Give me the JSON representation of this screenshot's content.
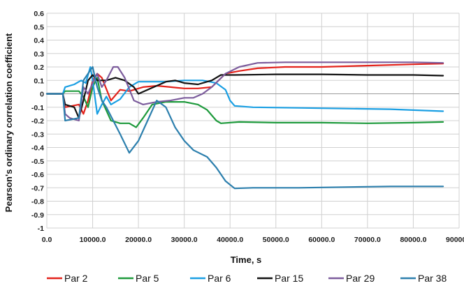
{
  "chart_data": {
    "type": "line",
    "xlabel": "Time, s",
    "ylabel": "Pearson's ordinary correlation coefficient",
    "xlim": [
      0,
      90000
    ],
    "ylim": [
      -1,
      0.6
    ],
    "grid": true,
    "legend_position": "bottom",
    "x_ticks": [
      "0.0",
      "10000.0",
      "20000.0",
      "30000.0",
      "40000.0",
      "50000.0",
      "60000.0",
      "70000.0",
      "80000.0",
      "90000.0"
    ],
    "y_ticks": [
      "0.6",
      "0.5",
      "0.4",
      "0.3",
      "0.2",
      "0.1",
      "0",
      "-0.1",
      "-0.2",
      "-0.3",
      "-0.4",
      "-0.5",
      "-0.6",
      "-0.7",
      "-0.8",
      "-0.9",
      "-1"
    ],
    "series": [
      {
        "name": "Par 2",
        "color": "#e3221b",
        "points": [
          [
            0,
            0
          ],
          [
            3500,
            0
          ],
          [
            4000,
            -0.1
          ],
          [
            7000,
            -0.08
          ],
          [
            8000,
            -0.15
          ],
          [
            9000,
            -0.05
          ],
          [
            10000,
            0.1
          ],
          [
            11000,
            0.15
          ],
          [
            12000,
            0.12
          ],
          [
            14000,
            -0.05
          ],
          [
            16000,
            0.03
          ],
          [
            18000,
            0.02
          ],
          [
            21000,
            0.05
          ],
          [
            24000,
            0.06
          ],
          [
            27000,
            0.05
          ],
          [
            30000,
            0.04
          ],
          [
            33000,
            0.04
          ],
          [
            36000,
            0.05
          ],
          [
            39000,
            0.15
          ],
          [
            42000,
            0.17
          ],
          [
            46000,
            0.19
          ],
          [
            52000,
            0.2
          ],
          [
            60000,
            0.2
          ],
          [
            70000,
            0.21
          ],
          [
            80000,
            0.22
          ],
          [
            86500,
            0.225
          ]
        ]
      },
      {
        "name": "Par 5",
        "color": "#1e9a3c",
        "points": [
          [
            0,
            0
          ],
          [
            3500,
            0
          ],
          [
            4000,
            0.02
          ],
          [
            7000,
            0.02
          ],
          [
            8000,
            -0.02
          ],
          [
            9000,
            -0.1
          ],
          [
            10000,
            0.05
          ],
          [
            11000,
            0.12
          ],
          [
            12000,
            -0.05
          ],
          [
            14000,
            -0.2
          ],
          [
            16000,
            -0.22
          ],
          [
            18000,
            -0.22
          ],
          [
            19500,
            -0.25
          ],
          [
            21000,
            -0.18
          ],
          [
            23000,
            -0.08
          ],
          [
            26000,
            -0.06
          ],
          [
            30000,
            -0.06
          ],
          [
            33000,
            -0.08
          ],
          [
            35000,
            -0.12
          ],
          [
            37000,
            -0.2
          ],
          [
            38000,
            -0.22
          ],
          [
            42000,
            -0.21
          ],
          [
            50000,
            -0.215
          ],
          [
            60000,
            -0.215
          ],
          [
            70000,
            -0.22
          ],
          [
            80000,
            -0.215
          ],
          [
            86500,
            -0.21
          ]
        ]
      },
      {
        "name": "Par 6",
        "color": "#1a9fe3",
        "points": [
          [
            0,
            0
          ],
          [
            3500,
            0
          ],
          [
            4000,
            0.05
          ],
          [
            6000,
            0.07
          ],
          [
            7500,
            0.1
          ],
          [
            8500,
            0.08
          ],
          [
            9500,
            0.2
          ],
          [
            10000,
            0.1
          ],
          [
            11000,
            -0.15
          ],
          [
            12000,
            -0.08
          ],
          [
            13000,
            -0.02
          ],
          [
            14000,
            -0.08
          ],
          [
            16000,
            -0.04
          ],
          [
            18000,
            0.05
          ],
          [
            20000,
            0.09
          ],
          [
            23000,
            0.09
          ],
          [
            26000,
            0.09
          ],
          [
            30000,
            0.1
          ],
          [
            34000,
            0.1
          ],
          [
            37000,
            0.08
          ],
          [
            39000,
            0.03
          ],
          [
            40000,
            -0.05
          ],
          [
            41000,
            -0.09
          ],
          [
            45000,
            -0.1
          ],
          [
            55000,
            -0.105
          ],
          [
            65000,
            -0.11
          ],
          [
            75000,
            -0.115
          ],
          [
            86500,
            -0.13
          ]
        ]
      },
      {
        "name": "Par 15",
        "color": "#111111",
        "points": [
          [
            0,
            0
          ],
          [
            3500,
            0
          ],
          [
            4000,
            -0.08
          ],
          [
            6000,
            -0.1
          ],
          [
            7000,
            -0.18
          ],
          [
            8000,
            -0.05
          ],
          [
            9000,
            0.1
          ],
          [
            10000,
            0.14
          ],
          [
            11000,
            0.1
          ],
          [
            13000,
            0.1
          ],
          [
            15000,
            0.12
          ],
          [
            17000,
            0.1
          ],
          [
            19000,
            0.05
          ],
          [
            20000,
            0.0
          ],
          [
            22000,
            0.03
          ],
          [
            24000,
            0.06
          ],
          [
            26000,
            0.09
          ],
          [
            28000,
            0.1
          ],
          [
            30000,
            0.08
          ],
          [
            33000,
            0.07
          ],
          [
            36000,
            0.1
          ],
          [
            38000,
            0.14
          ],
          [
            41000,
            0.14
          ],
          [
            50000,
            0.145
          ],
          [
            60000,
            0.145
          ],
          [
            70000,
            0.14
          ],
          [
            80000,
            0.14
          ],
          [
            86500,
            0.135
          ]
        ]
      },
      {
        "name": "Par 29",
        "color": "#7c5c9c",
        "points": [
          [
            0,
            0
          ],
          [
            3500,
            0
          ],
          [
            4000,
            -0.15
          ],
          [
            5000,
            -0.18
          ],
          [
            7000,
            -0.2
          ],
          [
            8000,
            0.05
          ],
          [
            9000,
            0.0
          ],
          [
            10000,
            0.08
          ],
          [
            11000,
            0.15
          ],
          [
            12000,
            0.05
          ],
          [
            13000,
            0.1
          ],
          [
            14500,
            0.2
          ],
          [
            15500,
            0.2
          ],
          [
            17000,
            0.12
          ],
          [
            19000,
            -0.05
          ],
          [
            21000,
            -0.08
          ],
          [
            24000,
            -0.06
          ],
          [
            27000,
            -0.05
          ],
          [
            30000,
            -0.03
          ],
          [
            32000,
            -0.03
          ],
          [
            34000,
            0.0
          ],
          [
            36000,
            0.05
          ],
          [
            37500,
            0.1
          ],
          [
            39000,
            0.15
          ],
          [
            42000,
            0.2
          ],
          [
            46000,
            0.23
          ],
          [
            52000,
            0.235
          ],
          [
            60000,
            0.235
          ],
          [
            70000,
            0.235
          ],
          [
            80000,
            0.235
          ],
          [
            86500,
            0.23
          ]
        ]
      },
      {
        "name": "Par 38",
        "color": "#2c7fad",
        "points": [
          [
            0,
            0
          ],
          [
            3500,
            0
          ],
          [
            4000,
            -0.2
          ],
          [
            7000,
            -0.18
          ],
          [
            8000,
            0.1
          ],
          [
            9000,
            0.15
          ],
          [
            10000,
            0.2
          ],
          [
            11000,
            0.05
          ],
          [
            12000,
            -0.05
          ],
          [
            13000,
            -0.1
          ],
          [
            14500,
            -0.2
          ],
          [
            16000,
            -0.3
          ],
          [
            18000,
            -0.44
          ],
          [
            20000,
            -0.35
          ],
          [
            22000,
            -0.2
          ],
          [
            24000,
            -0.05
          ],
          [
            26000,
            -0.1
          ],
          [
            28000,
            -0.25
          ],
          [
            30000,
            -0.35
          ],
          [
            32000,
            -0.42
          ],
          [
            35000,
            -0.47
          ],
          [
            37000,
            -0.55
          ],
          [
            39000,
            -0.65
          ],
          [
            41000,
            -0.705
          ],
          [
            45000,
            -0.7
          ],
          [
            55000,
            -0.7
          ],
          [
            65000,
            -0.695
          ],
          [
            75000,
            -0.69
          ],
          [
            86500,
            -0.69
          ]
        ]
      }
    ]
  }
}
